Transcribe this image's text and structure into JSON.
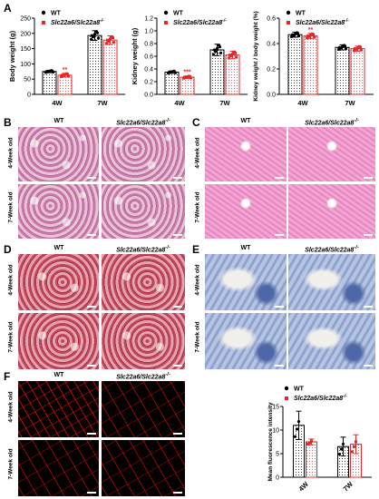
{
  "panels": {
    "A": "A",
    "B": "B",
    "C": "C",
    "D": "D",
    "E": "E",
    "F": "F"
  },
  "legend": {
    "wt": "WT",
    "ko": "Slc22a6/Slc22a8",
    "ko_sup": "-/-"
  },
  "col_wt": "WT",
  "col_ko": "Slc22a6/Slc22a8",
  "col_ko_sup": "-/-",
  "row_4w": "4-Week old",
  "row_7w": "7-Week old",
  "colors": {
    "wt": "#000000",
    "ko": "#e8262a"
  },
  "chart_data": [
    {
      "type": "bar",
      "id": "body-weight",
      "ylabel": "Body weight (g)",
      "categories": [
        "4W",
        "7W"
      ],
      "ylim": [
        0,
        250
      ],
      "yticks": [
        "0",
        "50",
        "100",
        "150",
        "200",
        "250"
      ],
      "series": [
        {
          "name": "WT",
          "values": [
            75,
            193
          ]
        },
        {
          "name": "Slc22a6/Slc22a8-/-",
          "values": [
            63,
            178
          ]
        }
      ],
      "errors": [
        [
          4,
          16
        ],
        [
          6,
          14
        ]
      ],
      "significance": [
        [
          "",
          ""
        ],
        [
          "**",
          ""
        ]
      ]
    },
    {
      "type": "bar",
      "id": "kidney-weight",
      "ylabel": "Kidney weight (g)",
      "categories": [
        "4W",
        "7W"
      ],
      "ylim": [
        0,
        1.2
      ],
      "yticks": [
        "0.0",
        "0.2",
        "0.4",
        "0.6",
        "0.8",
        "1.0",
        "1.2"
      ],
      "series": [
        {
          "name": "WT",
          "values": [
            0.35,
            0.7
          ]
        },
        {
          "name": "Slc22a6/Slc22a8-/-",
          "values": [
            0.27,
            0.62
          ]
        }
      ],
      "errors": [
        [
          0.02,
          0.09
        ],
        [
          0.02,
          0.06
        ]
      ],
      "significance": [
        [
          "",
          ""
        ],
        [
          "***",
          ""
        ]
      ]
    },
    {
      "type": "bar",
      "id": "kidney-body-ratio",
      "ylabel": "Kidney weight / body weight (%)",
      "categories": [
        "4W",
        "7W"
      ],
      "ylim": [
        0,
        0.6
      ],
      "yticks": [
        "0.0",
        "0.2",
        "0.4",
        "0.6"
      ],
      "series": [
        {
          "name": "WT",
          "values": [
            0.47,
            0.37
          ]
        },
        {
          "name": "Slc22a6/Slc22a8-/-",
          "values": [
            0.46,
            0.36
          ]
        }
      ],
      "errors": [
        [
          0.02,
          0.02
        ],
        [
          0.02,
          0.02
        ]
      ],
      "significance": [
        [
          "",
          ""
        ],
        [
          "**",
          ""
        ]
      ]
    },
    {
      "type": "bar",
      "id": "fluorescence",
      "ylabel": "Mean fluorescence intensity",
      "categories": [
        "4W",
        "7W"
      ],
      "ylim": [
        0,
        15
      ],
      "yticks": [
        "0",
        "5",
        "10",
        "15"
      ],
      "series": [
        {
          "name": "WT",
          "values": [
            11.0,
            6.5
          ]
        },
        {
          "name": "Slc22a6/Slc22a8-/-",
          "values": [
            7.5,
            7.0
          ]
        }
      ],
      "errors": [
        [
          3.0,
          2.0
        ],
        [
          0.6,
          2.0
        ]
      ],
      "significance": [
        [
          "",
          ""
        ],
        [
          "",
          ""
        ]
      ]
    }
  ]
}
